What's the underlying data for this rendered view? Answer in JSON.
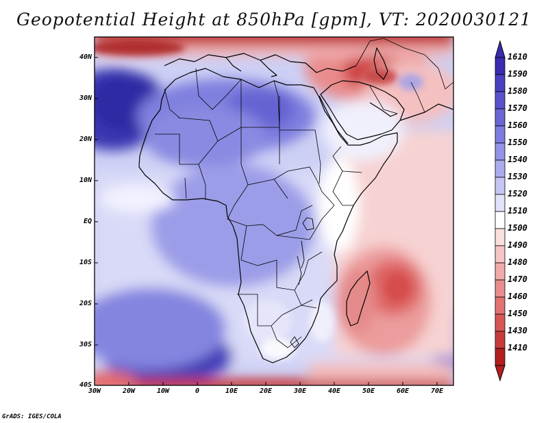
{
  "title": "Geopotential Height at 850hPa [gpm], VT: 2020030121",
  "credit": "GrADS: IGES/COLA",
  "axes": {
    "lat_labels": [
      "40N",
      "30N",
      "20N",
      "10N",
      "EQ",
      "10S",
      "20S",
      "30S",
      "40S"
    ],
    "lon_labels": [
      "30W",
      "20W",
      "10W",
      "0",
      "10E",
      "20E",
      "30E",
      "40E",
      "50E",
      "60E",
      "70E"
    ]
  },
  "colorbar": {
    "levels": [
      "1610",
      "1590",
      "1580",
      "1570",
      "1560",
      "1550",
      "1540",
      "1530",
      "1520",
      "1510",
      "1500",
      "1490",
      "1480",
      "1470",
      "1460",
      "1450",
      "1430",
      "1410"
    ],
    "colors": [
      "#3a2bb0",
      "#4a3fc0",
      "#5a52cc",
      "#6b66d6",
      "#7d7ce0",
      "#9393e8",
      "#ababee",
      "#c6c6f4",
      "#e2e2fa",
      "#ffffff",
      "#fbe0e0",
      "#f6c6c6",
      "#f0aaaa",
      "#e98e8e",
      "#e27272",
      "#d85656",
      "#c83b3b",
      "#b21f1f"
    ]
  },
  "colors": {
    "ocean_base": "#cfd0f5",
    "high": "#3e3cb6",
    "low": "#c22a2a",
    "coast": "#000000"
  }
}
